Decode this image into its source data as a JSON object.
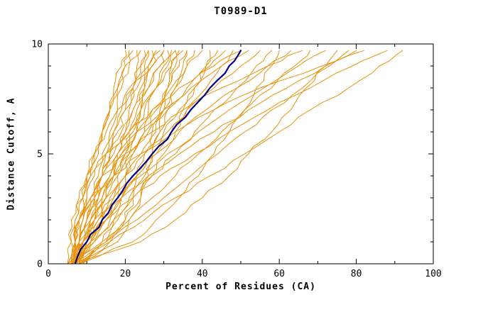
{
  "chart_data": {
    "type": "line",
    "title": "T0989-D1",
    "xlabel": "Percent of Residues (CA)",
    "ylabel": "Distance Cutoff, A",
    "xlim": [
      0,
      100
    ],
    "ylim": [
      0,
      10
    ],
    "x_major_ticks": [
      0,
      20,
      40,
      60,
      80,
      100
    ],
    "x_minor_ticks": [
      10,
      30,
      50,
      70,
      90
    ],
    "y_major_ticks": [
      0,
      5,
      10
    ],
    "y_minor_ticks": [
      1,
      2,
      3,
      4,
      6,
      7,
      8,
      9
    ],
    "grid": false,
    "legend": "none",
    "colors": {
      "background": "#ffffff",
      "axis": "#000000",
      "text": "#000000",
      "line": "#e8930d",
      "highlight": "#00008b"
    },
    "y_levels": [
      0,
      1,
      2,
      3,
      4,
      5,
      6,
      7,
      8,
      9,
      9.7
    ],
    "series": [
      {
        "x": [
          5,
          7,
          8,
          10,
          11,
          13,
          14,
          16,
          17,
          19,
          20
        ]
      },
      {
        "x": [
          6,
          7,
          7,
          9,
          10,
          12,
          14,
          16,
          18,
          20,
          22
        ]
      },
      {
        "x": [
          7,
          11,
          14,
          15,
          17,
          18,
          20,
          21,
          22,
          23,
          24
        ]
      },
      {
        "x": [
          6,
          8,
          10,
          12,
          14,
          16,
          18,
          20,
          22,
          24,
          25
        ]
      },
      {
        "x": [
          8,
          9,
          10,
          11,
          13,
          15,
          17,
          19,
          21,
          24,
          26
        ]
      },
      {
        "x": [
          5,
          11,
          14,
          16,
          18,
          20,
          21,
          23,
          25,
          26,
          27
        ]
      },
      {
        "x": [
          7,
          9,
          11,
          13,
          16,
          18,
          20,
          22,
          24,
          27,
          28
        ]
      },
      {
        "x": [
          6,
          7,
          8,
          10,
          12,
          14,
          17,
          20,
          23,
          26,
          29
        ]
      },
      {
        "x": [
          8,
          10,
          13,
          15,
          17,
          19,
          22,
          24,
          26,
          29,
          30
        ]
      },
      {
        "x": [
          5,
          12,
          15,
          18,
          20,
          22,
          25,
          26,
          28,
          30,
          31
        ]
      },
      {
        "x": [
          7,
          8,
          9,
          11,
          14,
          16,
          19,
          22,
          26,
          29,
          32
        ]
      },
      {
        "x": [
          6,
          9,
          12,
          14,
          17,
          20,
          23,
          25,
          28,
          31,
          33
        ]
      },
      {
        "x": [
          8,
          15,
          18,
          21,
          23,
          25,
          28,
          29,
          31,
          33,
          34
        ]
      },
      {
        "x": [
          7,
          8,
          10,
          12,
          14,
          17,
          21,
          24,
          28,
          32,
          35
        ]
      },
      {
        "x": [
          6,
          9,
          12,
          15,
          18,
          22,
          25,
          28,
          31,
          34,
          36
        ]
      },
      {
        "x": [
          8,
          11,
          14,
          17,
          20,
          24,
          27,
          30,
          33,
          36,
          38
        ]
      },
      {
        "x": [
          7,
          8,
          10,
          13,
          16,
          19,
          23,
          27,
          32,
          36,
          40
        ]
      },
      {
        "x": [
          6,
          15,
          20,
          24,
          27,
          30,
          33,
          35,
          38,
          41,
          42
        ]
      },
      {
        "x": [
          8,
          12,
          16,
          19,
          23,
          27,
          30,
          34,
          38,
          41,
          44
        ]
      },
      {
        "x": [
          7,
          8,
          11,
          14,
          17,
          21,
          26,
          31,
          36,
          42,
          46
        ]
      },
      {
        "x": [
          6,
          10,
          15,
          19,
          23,
          28,
          32,
          36,
          41,
          45,
          48
        ]
      },
      {
        "x": [
          8,
          8,
          9,
          12,
          14,
          18,
          23,
          30,
          37,
          45,
          52
        ]
      },
      {
        "x": [
          7,
          8,
          11,
          15,
          20,
          25,
          31,
          36,
          43,
          50,
          55
        ]
      },
      {
        "x": [
          6,
          11,
          17,
          22,
          27,
          33,
          38,
          43,
          49,
          54,
          58
        ]
      },
      {
        "x": [
          8,
          22,
          28,
          34,
          39,
          43,
          47,
          51,
          54,
          58,
          60
        ]
      },
      {
        "x": [
          7,
          9,
          12,
          17,
          22,
          28,
          34,
          41,
          49,
          57,
          63
        ]
      },
      {
        "x": [
          6,
          7,
          8,
          11,
          14,
          20,
          27,
          35,
          45,
          57,
          66
        ]
      },
      {
        "x": [
          8,
          14,
          21,
          27,
          33,
          39,
          45,
          51,
          58,
          64,
          68
        ]
      },
      {
        "x": [
          7,
          9,
          13,
          18,
          24,
          31,
          39,
          47,
          56,
          65,
          72
        ]
      },
      {
        "x": [
          6,
          24,
          33,
          40,
          47,
          52,
          58,
          63,
          67,
          72,
          75
        ]
      },
      {
        "x": [
          8,
          15,
          23,
          30,
          37,
          44,
          51,
          58,
          66,
          73,
          78
        ]
      },
      {
        "x": [
          7,
          9,
          14,
          19,
          26,
          34,
          43,
          52,
          62,
          72,
          80
        ]
      },
      {
        "x": [
          6,
          7,
          8,
          12,
          17,
          24,
          33,
          43,
          55,
          71,
          82
        ]
      },
      {
        "x": [
          8,
          10,
          15,
          22,
          29,
          38,
          47,
          57,
          68,
          79,
          88
        ]
      },
      {
        "x": [
          7,
          16,
          25,
          33,
          42,
          51,
          60,
          68,
          78,
          86,
          92
        ]
      },
      {
        "x": [
          9,
          10,
          12,
          13,
          14,
          15,
          16,
          18,
          19,
          20,
          21
        ]
      },
      {
        "x": [
          5,
          6,
          7,
          8,
          10,
          12,
          14,
          16,
          18,
          21,
          23
        ]
      },
      {
        "x": [
          8,
          18,
          21,
          24,
          26,
          27,
          29,
          30,
          31,
          32,
          33
        ]
      },
      {
        "x": [
          6,
          14,
          17,
          19,
          20,
          21,
          23,
          24,
          25,
          25,
          26
        ]
      },
      {
        "x": [
          7,
          7,
          8,
          9,
          10,
          12,
          15,
          18,
          22,
          27,
          30
        ]
      },
      {
        "x": [
          9,
          16,
          20,
          22,
          25,
          27,
          29,
          31,
          33,
          35,
          36
        ]
      },
      {
        "x": [
          5,
          6,
          6,
          9,
          11,
          15,
          21,
          27,
          34,
          43,
          50
        ]
      }
    ],
    "highlight_series": {
      "x": [
        7,
        10,
        14,
        18,
        22,
        27,
        32,
        37,
        42,
        47,
        50
      ]
    }
  }
}
